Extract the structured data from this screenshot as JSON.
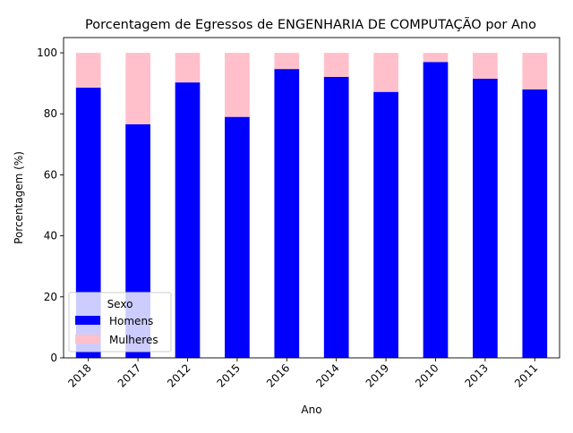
{
  "chart_data": {
    "type": "bar",
    "stacked": true,
    "title": "Porcentagem de Egressos de ENGENHARIA DE COMPUTAÇÃO por Ano",
    "xlabel": "Ano",
    "ylabel": "Porcentagem (%)",
    "categories": [
      "2018",
      "2017",
      "2012",
      "2015",
      "2016",
      "2014",
      "2019",
      "2010",
      "2013",
      "2011"
    ],
    "series": [
      {
        "name": "Homens",
        "color": "#0000ff",
        "values": [
          88.6,
          76.6,
          90.3,
          79.0,
          94.7,
          92.1,
          87.2,
          97.0,
          91.5,
          88.0
        ]
      },
      {
        "name": "Mulheres",
        "color": "#ffc0cb",
        "values": [
          11.4,
          23.4,
          9.7,
          21.0,
          5.3,
          7.9,
          12.8,
          3.0,
          8.5,
          12.0
        ]
      }
    ],
    "ylim": [
      0,
      105
    ],
    "yticks": [
      0,
      20,
      40,
      60,
      80,
      100
    ],
    "grid": false,
    "legend": {
      "title": "Sexo",
      "position": "lower-left"
    }
  }
}
